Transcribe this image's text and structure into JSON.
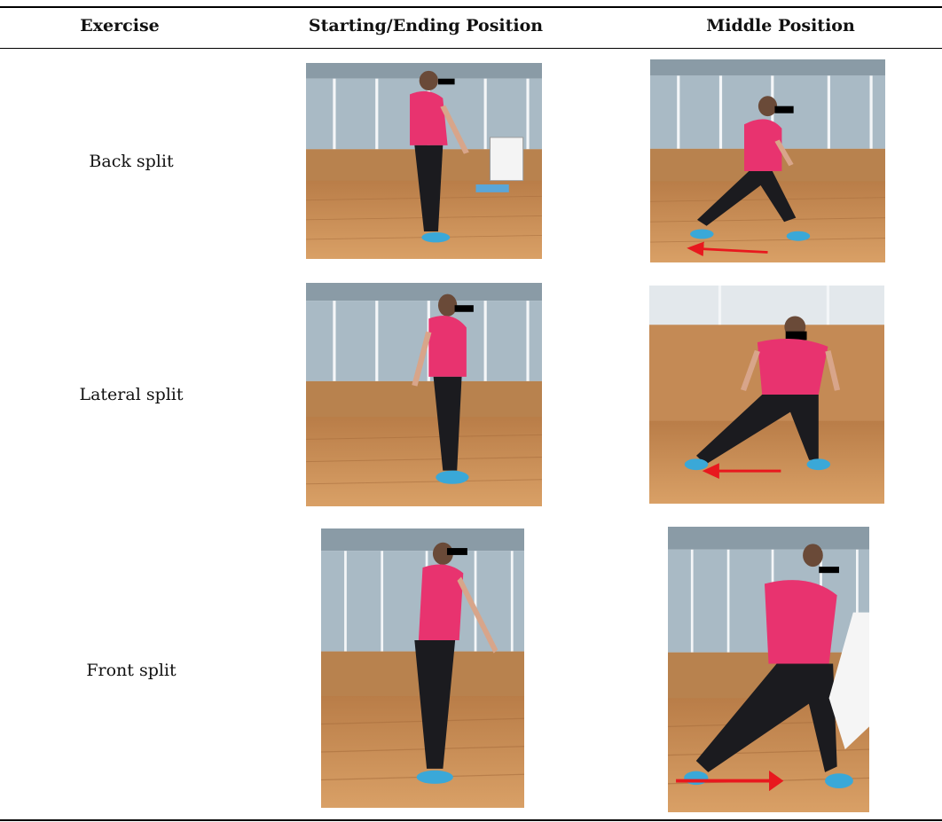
{
  "table": {
    "headers": {
      "exercise": "Exercise",
      "start_end": "Starting/Ending Position",
      "middle": "Middle Position"
    },
    "rows": [
      {
        "exercise": "Back split"
      },
      {
        "exercise": "Lateral split"
      },
      {
        "exercise": "Front split"
      }
    ]
  },
  "colors": {
    "shirt": "#e8336f",
    "leggings": "#1b1b1f",
    "floor": "#c98e55",
    "arrow": "#e8181e",
    "shoes": "#3aa8d8",
    "censor_bar": "#000000"
  }
}
